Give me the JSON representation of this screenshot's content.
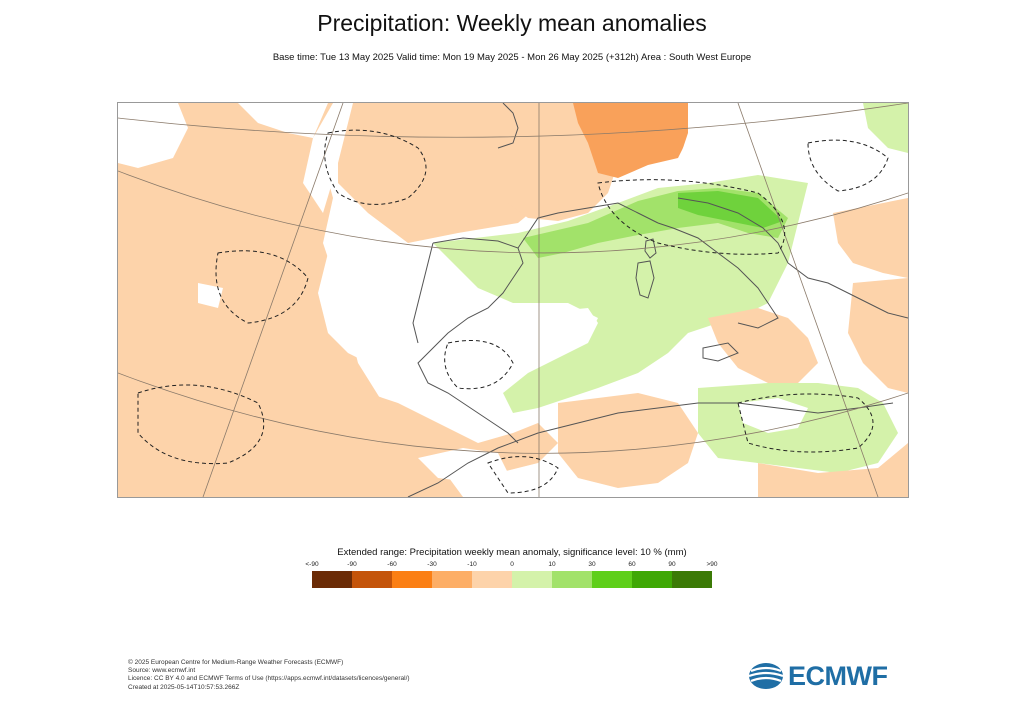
{
  "header": {
    "title": "Precipitation: Weekly mean anomalies",
    "subtitle": "Base time: Tue 13 May 2025 Valid time: Mon 19 May 2025 - Mon 26 May 2025 (+312h) Area : South West Europe"
  },
  "map": {
    "area": "South West Europe",
    "ocean_color": "#ffffff",
    "land_color": "#ffffff",
    "coastline_color": "#555555",
    "graticule_color": "#8a7a6a",
    "significance_contour": "dashed",
    "colors": {
      "dry_10_30": "#fcc08f",
      "dry_0_10": "#fdd3aa",
      "dry_30_60": "#f9a15a",
      "wet_0_10": "#d4f2aa",
      "wet_10_30": "#a2e26a",
      "wet_30_60": "#6fd23c"
    }
  },
  "legend": {
    "title": "Extended range: Precipitation weekly mean anomaly, significance level: 10 % (mm)",
    "labels": [
      "<-90",
      "-90",
      "-60",
      "-30",
      "-10",
      "0",
      "10",
      "30",
      "60",
      "90",
      ">90"
    ],
    "colors": [
      "#6b2b06",
      "#c4540a",
      "#fb7f14",
      "#fdae66",
      "#fdd3aa",
      "#d4f2aa",
      "#a2e26a",
      "#5fcf1a",
      "#3fa805",
      "#3b7a06"
    ]
  },
  "footer": {
    "lines": [
      "© 2025 European Centre for Medium-Range Weather Forecasts (ECMWF)",
      "Source: www.ecmwf.int",
      "Licence: CC BY 4.0 and ECMWF Terms of Use (https://apps.ecmwf.int/datasets/licences/general/)",
      "Created at 2025-05-14T10:57:53.266Z"
    ]
  },
  "logo": {
    "text": "ECMWF",
    "color": "#1f6ea5"
  }
}
